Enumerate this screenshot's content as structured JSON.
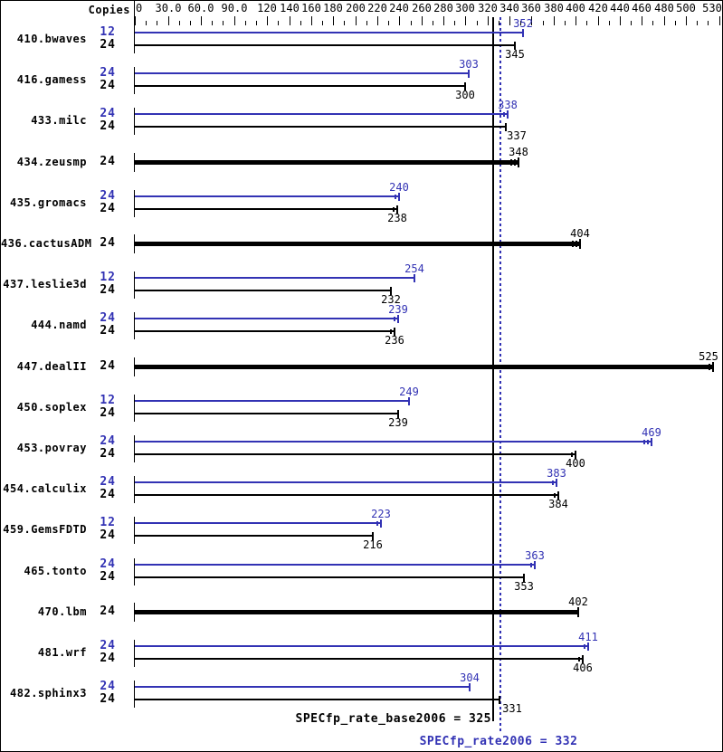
{
  "chart_data": {
    "type": "bar",
    "orientation": "horizontal",
    "copies_header": "Copies",
    "axis": {
      "min": 0,
      "max": 532,
      "minor_step": 10,
      "labeled_ticks": [
        {
          "v": 0,
          "label": "0"
        },
        {
          "v": 30,
          "label": "30.0"
        },
        {
          "v": 60,
          "label": "60.0"
        },
        {
          "v": 90,
          "label": "90.0"
        },
        {
          "v": 120,
          "label": "120"
        },
        {
          "v": 140,
          "label": "140"
        },
        {
          "v": 160,
          "label": "160"
        },
        {
          "v": 180,
          "label": "180"
        },
        {
          "v": 200,
          "label": "200"
        },
        {
          "v": 220,
          "label": "220"
        },
        {
          "v": 240,
          "label": "240"
        },
        {
          "v": 260,
          "label": "260"
        },
        {
          "v": 280,
          "label": "280"
        },
        {
          "v": 300,
          "label": "300"
        },
        {
          "v": 320,
          "label": "320"
        },
        {
          "v": 340,
          "label": "340"
        },
        {
          "v": 360,
          "label": "360"
        },
        {
          "v": 380,
          "label": "380"
        },
        {
          "v": 400,
          "label": "400"
        },
        {
          "v": 420,
          "label": "420"
        },
        {
          "v": 440,
          "label": "440"
        },
        {
          "v": 460,
          "label": "460"
        },
        {
          "v": 480,
          "label": "480"
        },
        {
          "v": 500,
          "label": "500"
        },
        {
          "v": 530,
          "label": "530"
        }
      ]
    },
    "colors": {
      "peak_blue": "#3232b4",
      "base_black": "#000000"
    },
    "reference_lines": {
      "base": {
        "value": 325,
        "label": "SPECfp_rate_base2006 = 325",
        "style": "solid-black"
      },
      "peak": {
        "value": 332,
        "label": "SPECfp_rate2006 = 332",
        "style": "dotted-blue"
      }
    },
    "benchmarks": [
      {
        "name": "410.bwaves",
        "rows": [
          {
            "copies": 12,
            "value": 352,
            "kind": "peak",
            "marks": 0
          },
          {
            "copies": 24,
            "value": 345,
            "kind": "base",
            "marks": 0
          }
        ]
      },
      {
        "name": "416.gamess",
        "rows": [
          {
            "copies": 24,
            "value": 303,
            "kind": "peak",
            "marks": 0
          },
          {
            "copies": 24,
            "value": 300,
            "kind": "base",
            "marks": 0
          }
        ]
      },
      {
        "name": "433.milc",
        "rows": [
          {
            "copies": 24,
            "value": 338,
            "kind": "peak",
            "marks": 1
          },
          {
            "copies": 24,
            "value": 337,
            "kind": "base",
            "marks": 0,
            "label_dx": 12
          }
        ]
      },
      {
        "name": "434.zeusmp",
        "single": true,
        "rows": [
          {
            "copies": 24,
            "value": 348,
            "kind": "both",
            "marks": 2
          }
        ]
      },
      {
        "name": "435.gromacs",
        "rows": [
          {
            "copies": 24,
            "value": 240,
            "kind": "peak",
            "marks": 1
          },
          {
            "copies": 24,
            "value": 238,
            "kind": "base",
            "marks": 1
          }
        ]
      },
      {
        "name": "436.cactusADM",
        "single": true,
        "rows": [
          {
            "copies": 24,
            "value": 404,
            "kind": "both",
            "marks": 2
          }
        ]
      },
      {
        "name": "437.leslie3d",
        "rows": [
          {
            "copies": 12,
            "value": 254,
            "kind": "peak",
            "marks": 0
          },
          {
            "copies": 24,
            "value": 232,
            "kind": "base",
            "marks": 0
          }
        ]
      },
      {
        "name": "444.namd",
        "rows": [
          {
            "copies": 24,
            "value": 239,
            "kind": "peak",
            "marks": 1
          },
          {
            "copies": 24,
            "value": 236,
            "kind": "base",
            "marks": 1
          }
        ]
      },
      {
        "name": "447.dealII",
        "single": true,
        "rows": [
          {
            "copies": 24,
            "value": 525,
            "kind": "both",
            "marks": 1,
            "label_dx": -5
          }
        ]
      },
      {
        "name": "450.soplex",
        "rows": [
          {
            "copies": 12,
            "value": 249,
            "kind": "peak",
            "marks": 0
          },
          {
            "copies": 24,
            "value": 239,
            "kind": "base",
            "marks": 0
          }
        ]
      },
      {
        "name": "453.povray",
        "rows": [
          {
            "copies": 24,
            "value": 469,
            "kind": "peak",
            "marks": 2
          },
          {
            "copies": 24,
            "value": 400,
            "kind": "base",
            "marks": 1
          }
        ]
      },
      {
        "name": "454.calculix",
        "rows": [
          {
            "copies": 24,
            "value": 383,
            "kind": "peak",
            "marks": 1
          },
          {
            "copies": 24,
            "value": 384,
            "kind": "base",
            "marks": 1
          }
        ]
      },
      {
        "name": "459.GemsFDTD",
        "rows": [
          {
            "copies": 12,
            "value": 223,
            "kind": "peak",
            "marks": 1
          },
          {
            "copies": 24,
            "value": 216,
            "kind": "base",
            "marks": 0
          }
        ]
      },
      {
        "name": "465.tonto",
        "rows": [
          {
            "copies": 24,
            "value": 363,
            "kind": "peak",
            "marks": 1
          },
          {
            "copies": 24,
            "value": 353,
            "kind": "base",
            "marks": 0
          }
        ]
      },
      {
        "name": "470.lbm",
        "single": true,
        "rows": [
          {
            "copies": 24,
            "value": 402,
            "kind": "both",
            "marks": 0
          }
        ]
      },
      {
        "name": "481.wrf",
        "rows": [
          {
            "copies": 24,
            "value": 411,
            "kind": "peak",
            "marks": 1
          },
          {
            "copies": 24,
            "value": 406,
            "kind": "base",
            "marks": 1
          }
        ]
      },
      {
        "name": "482.sphinx3",
        "rows": [
          {
            "copies": 24,
            "value": 304,
            "kind": "peak",
            "marks": 0
          },
          {
            "copies": 24,
            "value": 331,
            "kind": "base",
            "marks": 0,
            "label_dx": 14
          }
        ]
      }
    ]
  }
}
